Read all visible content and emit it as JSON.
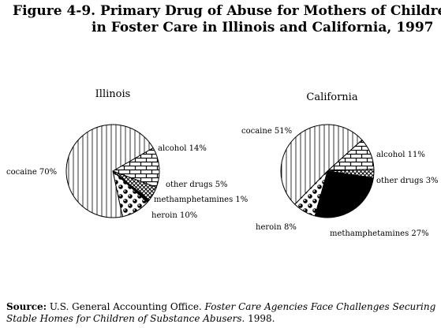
{
  "figure": {
    "title_line1": "Figure 4-9.  Primary Drug of Abuse for Mothers of Children",
    "title_line2": "in Foster Care in Illinois and California, 1997"
  },
  "source": {
    "label": "Source:",
    "org": " U.S. General Accounting Office. ",
    "title": "Foster Care Agencies Face Challenges Securing Stable Homes for Children of Substance Abusers.",
    "year": " 1998."
  },
  "chart_data": [
    {
      "type": "pie",
      "title": "Illinois",
      "slices": [
        {
          "name": "alcohol",
          "label": "alcohol 14%",
          "value": 14,
          "pattern": "brick"
        },
        {
          "name": "other drugs",
          "label": "other drugs 5%",
          "value": 5,
          "pattern": "crosshatch"
        },
        {
          "name": "methamphetamines",
          "label": "methamphetamines 1%",
          "value": 1,
          "pattern": "solid"
        },
        {
          "name": "heroin",
          "label": "heroin 10%",
          "value": 10,
          "pattern": "dots"
        },
        {
          "name": "cocaine",
          "label": "cocaine 70%",
          "value": 70,
          "pattern": "vertical-lines"
        }
      ]
    },
    {
      "type": "pie",
      "title": "California",
      "slices": [
        {
          "name": "alcohol",
          "label": "alcohol 11%",
          "value": 11,
          "pattern": "brick"
        },
        {
          "name": "other drugs",
          "label": "other drugs 3%",
          "value": 3,
          "pattern": "crosshatch"
        },
        {
          "name": "methamphetamines",
          "label": "methamphetamines 27%",
          "value": 27,
          "pattern": "solid"
        },
        {
          "name": "heroin",
          "label": "heroin 8%",
          "value": 8,
          "pattern": "dots"
        },
        {
          "name": "cocaine",
          "label": "cocaine 51%",
          "value": 51,
          "pattern": "vertical-lines"
        }
      ]
    }
  ]
}
